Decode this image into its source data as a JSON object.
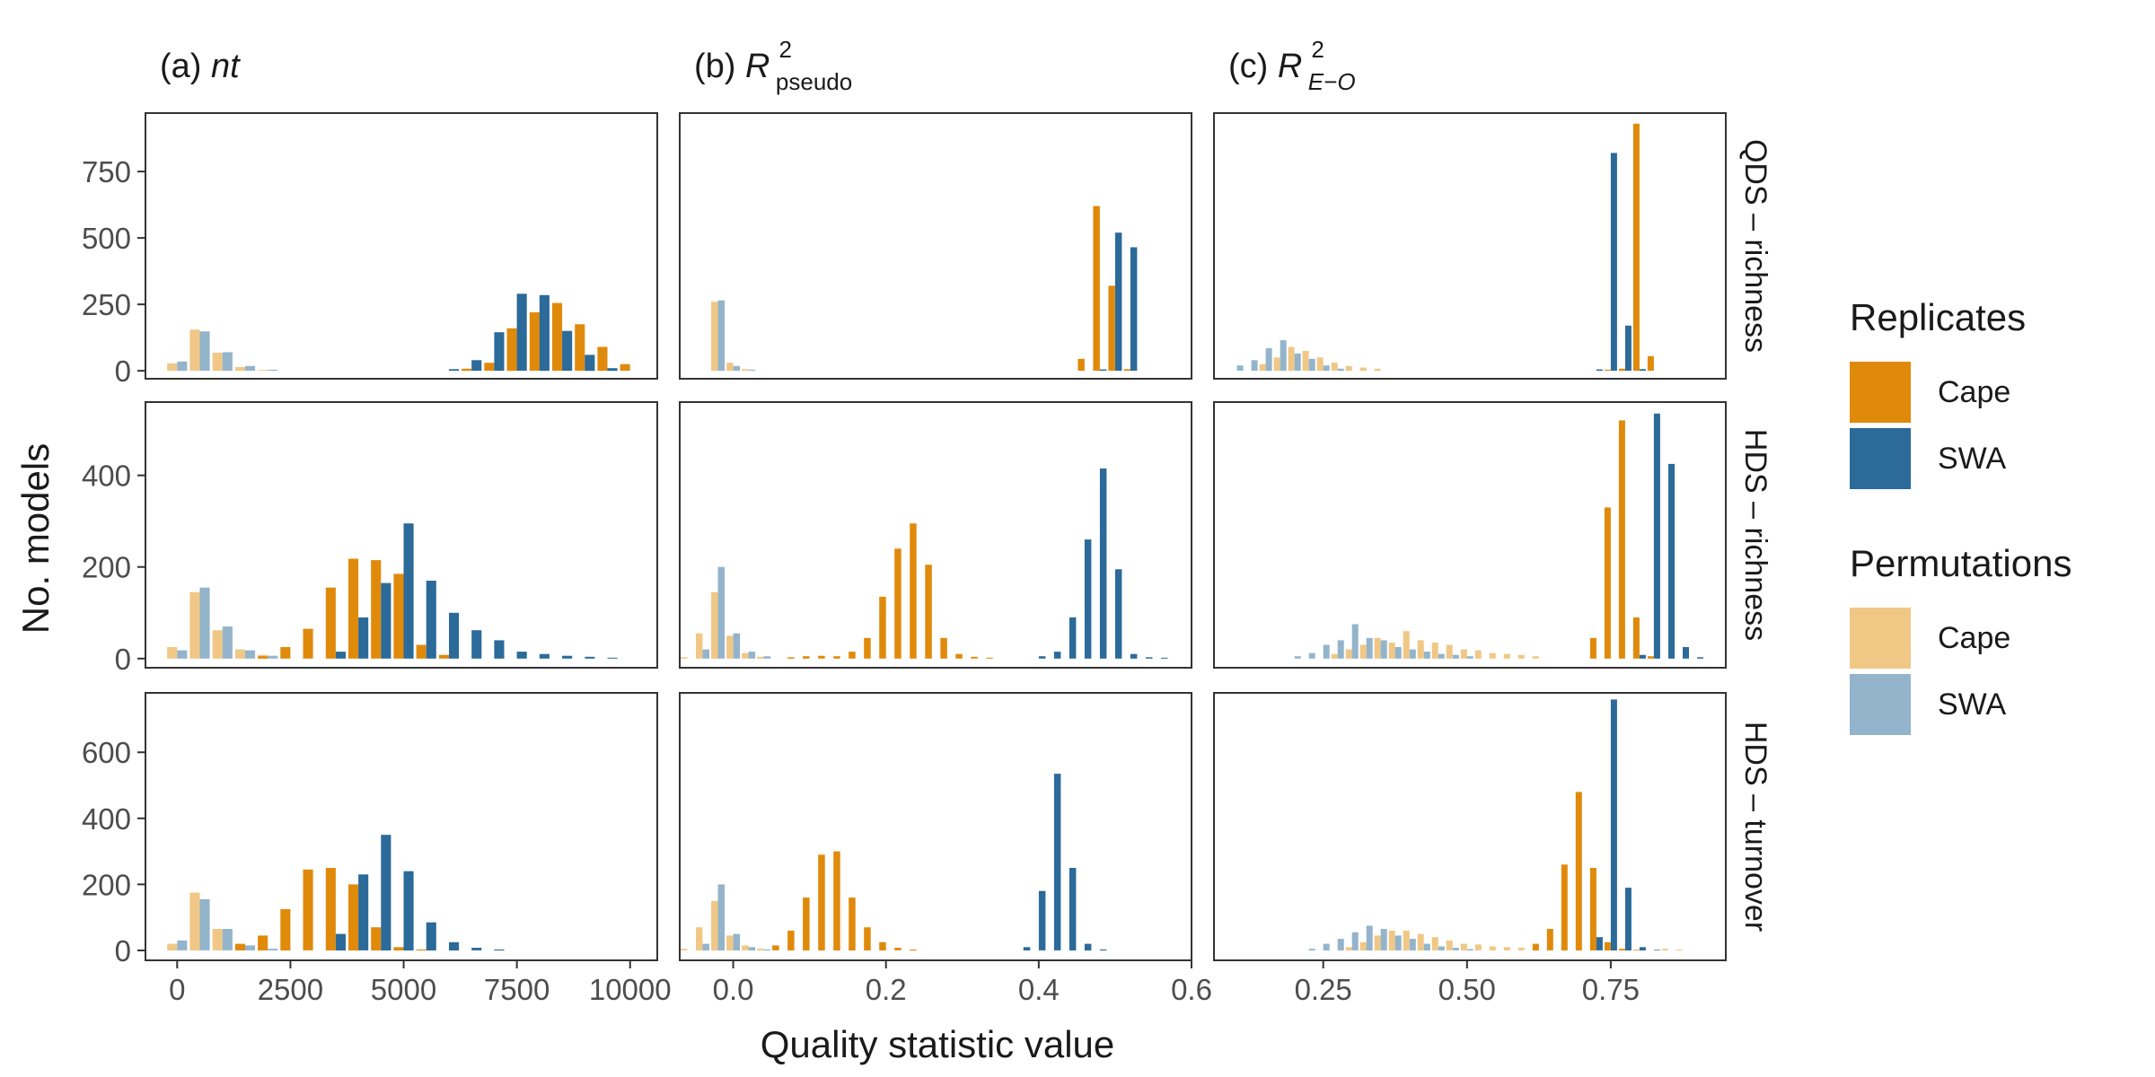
{
  "figure": {
    "ylabel": "No. models",
    "xlabel": "Quality statistic value"
  },
  "columns": [
    {
      "label": "(a)",
      "stat": "nt"
    },
    {
      "label": "(b)",
      "stat": "R",
      "sup": "2",
      "sub": "pseudo"
    },
    {
      "label": "(c)",
      "stat": "R",
      "sup": "2",
      "sub": "E−O"
    }
  ],
  "rows": [
    "QDS – richness",
    "HDS – richness",
    "HDS – turnover"
  ],
  "legend": {
    "replicates": {
      "title": "Replicates",
      "items": [
        {
          "label": "Cape",
          "color": "#E08A0B"
        },
        {
          "label": "SWA",
          "color": "#2B6A99"
        }
      ]
    },
    "permutations": {
      "title": "Permutations",
      "items": [
        {
          "label": "Cape",
          "color": "#F0C785"
        },
        {
          "label": "SWA",
          "color": "#93B4CB"
        }
      ]
    }
  },
  "colors": {
    "rep_cape": "#E08A0B",
    "rep_swa": "#2B6A99",
    "perm_cape": "#F0C785",
    "perm_swa": "#93B4CB"
  },
  "chart_data": {
    "type": "bar",
    "description_axes": {
      "columns": [
        {
          "xlim": [
            -700,
            10600
          ],
          "ticks": [
            0,
            2500,
            5000,
            7500,
            10000
          ],
          "tick_labels": [
            "0",
            "2500",
            "5000",
            "7500",
            "10000"
          ]
        },
        {
          "xlim": [
            -0.07,
            0.6
          ],
          "ticks": [
            0.0,
            0.2,
            0.4,
            0.6
          ],
          "tick_labels": [
            "0.0",
            "0.2",
            "0.4",
            "0.6"
          ]
        },
        {
          "xlim": [
            0.06,
            0.95
          ],
          "ticks": [
            0.25,
            0.5,
            0.75
          ],
          "tick_labels": [
            "0.25",
            "0.50",
            "0.75"
          ]
        }
      ],
      "rows": [
        {
          "ylim": [
            -30,
            970
          ],
          "ticks": [
            0,
            250,
            500,
            750
          ],
          "tick_labels": [
            "0",
            "250",
            "500",
            "750"
          ]
        },
        {
          "ylim": [
            -20,
            560
          ],
          "ticks": [
            0,
            200,
            400
          ],
          "tick_labels": [
            "0",
            "200",
            "400"
          ]
        },
        {
          "ylim": [
            -30,
            780
          ],
          "ticks": [
            0,
            200,
            400,
            600
          ],
          "tick_labels": [
            "0",
            "200",
            "400",
            "600"
          ]
        }
      ]
    },
    "panels": [
      {
        "row": 0,
        "col": 0,
        "bin_width": 500,
        "series": [
          {
            "name": "Cape",
            "group": "Permutations",
            "x": [
              0,
              500,
              1000,
              1500,
              2000
            ],
            "values": [
              28,
              155,
              68,
              14,
              3
            ]
          },
          {
            "name": "SWA",
            "group": "Permutations",
            "x": [
              0,
              500,
              1000,
              1500,
              2000
            ],
            "values": [
              35,
              148,
              70,
              18,
              4
            ]
          },
          {
            "name": "Cape",
            "group": "Replicates",
            "x": [
              6500,
              7000,
              7500,
              8000,
              8500,
              9000,
              9500,
              10000
            ],
            "values": [
              8,
              30,
              160,
              220,
              255,
              175,
              90,
              25
            ]
          },
          {
            "name": "SWA",
            "group": "Replicates",
            "x": [
              6000,
              6500,
              7000,
              7500,
              8000,
              8500,
              9000,
              9500
            ],
            "values": [
              6,
              40,
              145,
              290,
              285,
              150,
              60,
              10
            ]
          }
        ]
      },
      {
        "row": 0,
        "col": 1,
        "bin_width": 0.02,
        "series": [
          {
            "name": "Cape",
            "group": "Permutations",
            "x": [
              -0.02,
              0.0,
              0.02
            ],
            "values": [
              260,
              30,
              6
            ]
          },
          {
            "name": "SWA",
            "group": "Permutations",
            "x": [
              -0.02,
              0.0,
              0.02
            ],
            "values": [
              265,
              18,
              4
            ]
          },
          {
            "name": "Cape",
            "group": "Replicates",
            "x": [
              0.46,
              0.48,
              0.5,
              0.52
            ],
            "values": [
              45,
              620,
              320,
              6
            ]
          },
          {
            "name": "SWA",
            "group": "Replicates",
            "x": [
              0.48,
              0.5,
              0.52
            ],
            "values": [
              5,
              520,
              465
            ]
          }
        ]
      },
      {
        "row": 0,
        "col": 2,
        "bin_width": 0.025,
        "series": [
          {
            "name": "Cape",
            "group": "Permutations",
            "x": [
              0.15,
              0.175,
              0.2,
              0.225,
              0.25,
              0.275,
              0.3,
              0.325,
              0.35
            ],
            "values": [
              25,
              50,
              90,
              75,
              50,
              30,
              18,
              12,
              8
            ]
          },
          {
            "name": "SWA",
            "group": "Permutations",
            "x": [
              0.1,
              0.125,
              0.15,
              0.175,
              0.2,
              0.225,
              0.25,
              0.275
            ],
            "values": [
              20,
              40,
              85,
              115,
              65,
              45,
              20,
              8
            ]
          },
          {
            "name": "Cape",
            "group": "Replicates",
            "x": [
              0.75,
              0.775,
              0.8,
              0.825
            ],
            "values": [
              4,
              8,
              930,
              55
            ]
          },
          {
            "name": "SWA",
            "group": "Replicates",
            "x": [
              0.725,
              0.75,
              0.775,
              0.8
            ],
            "values": [
              5,
              820,
              170,
              6
            ]
          }
        ]
      },
      {
        "row": 1,
        "col": 0,
        "bin_width": 500,
        "series": [
          {
            "name": "Cape",
            "group": "Permutations",
            "x": [
              0,
              500,
              1000,
              1500,
              2000
            ],
            "values": [
              25,
              145,
              62,
              20,
              8
            ]
          },
          {
            "name": "SWA",
            "group": "Permutations",
            "x": [
              0,
              500,
              1000,
              1500,
              2000
            ],
            "values": [
              18,
              155,
              70,
              18,
              6
            ]
          },
          {
            "name": "Cape",
            "group": "Replicates",
            "x": [
              2000,
              2500,
              3000,
              3500,
              4000,
              4500,
              5000,
              5500,
              6000
            ],
            "values": [
              5,
              25,
              65,
              155,
              218,
              215,
              185,
              30,
              8
            ]
          },
          {
            "name": "SWA",
            "group": "Replicates",
            "x": [
              3500,
              4000,
              4500,
              5000,
              5500,
              6000,
              6500,
              7000,
              7500,
              8000,
              8500,
              9000,
              9500
            ],
            "values": [
              15,
              90,
              165,
              295,
              170,
              100,
              62,
              40,
              15,
              10,
              6,
              4,
              2
            ]
          }
        ]
      },
      {
        "row": 1,
        "col": 1,
        "bin_width": 0.02,
        "series": [
          {
            "name": "Cape",
            "group": "Permutations",
            "x": [
              -0.06,
              -0.04,
              -0.02,
              0.0,
              0.02,
              0.04
            ],
            "values": [
              3,
              55,
              145,
              50,
              12,
              4
            ]
          },
          {
            "name": "SWA",
            "group": "Permutations",
            "x": [
              -0.04,
              -0.02,
              0.0,
              0.02,
              0.04
            ],
            "values": [
              20,
              200,
              55,
              15,
              5
            ]
          },
          {
            "name": "Cape",
            "group": "Replicates",
            "x": [
              0.08,
              0.1,
              0.12,
              0.14,
              0.16,
              0.18,
              0.2,
              0.22,
              0.24,
              0.26,
              0.28,
              0.3,
              0.32,
              0.34
            ],
            "values": [
              3,
              5,
              6,
              5,
              15,
              45,
              135,
              240,
              295,
              205,
              45,
              10,
              4,
              2
            ]
          },
          {
            "name": "SWA",
            "group": "Replicates",
            "x": [
              0.4,
              0.42,
              0.44,
              0.46,
              0.48,
              0.5,
              0.52,
              0.54,
              0.56
            ],
            "values": [
              5,
              15,
              90,
              260,
              415,
              195,
              10,
              3,
              2
            ]
          }
        ]
      },
      {
        "row": 1,
        "col": 2,
        "bin_width": 0.025,
        "series": [
          {
            "name": "Cape",
            "group": "Permutations",
            "x": [
              0.275,
              0.3,
              0.325,
              0.35,
              0.375,
              0.4,
              0.425,
              0.45,
              0.475,
              0.5,
              0.525,
              0.55,
              0.575,
              0.6,
              0.625
            ],
            "values": [
              10,
              20,
              30,
              45,
              35,
              60,
              40,
              35,
              30,
              20,
              18,
              12,
              10,
              8,
              5
            ]
          },
          {
            "name": "SWA",
            "group": "Permutations",
            "x": [
              0.2,
              0.225,
              0.25,
              0.275,
              0.3,
              0.325,
              0.35,
              0.375,
              0.4,
              0.425,
              0.45,
              0.475,
              0.5
            ],
            "values": [
              5,
              12,
              30,
              40,
              75,
              45,
              40,
              25,
              20,
              15,
              10,
              8,
              5
            ]
          },
          {
            "name": "Cape",
            "group": "Replicates",
            "x": [
              0.725,
              0.75,
              0.775,
              0.8,
              0.825
            ],
            "values": [
              45,
              330,
              520,
              90,
              5
            ]
          },
          {
            "name": "SWA",
            "group": "Replicates",
            "x": [
              0.8,
              0.825,
              0.85,
              0.875,
              0.9
            ],
            "values": [
              8,
              535,
              425,
              25,
              3
            ]
          }
        ]
      },
      {
        "row": 2,
        "col": 0,
        "bin_width": 500,
        "series": [
          {
            "name": "Cape",
            "group": "Permutations",
            "x": [
              0,
              500,
              1000,
              1500,
              2000
            ],
            "values": [
              20,
              175,
              65,
              18,
              5
            ]
          },
          {
            "name": "SWA",
            "group": "Permutations",
            "x": [
              0,
              500,
              1000,
              1500,
              2000
            ],
            "values": [
              30,
              155,
              65,
              15,
              5
            ]
          },
          {
            "name": "Cape",
            "group": "Replicates",
            "x": [
              1500,
              2000,
              2500,
              3000,
              3500,
              4000,
              4500,
              5000,
              5500
            ],
            "values": [
              20,
              45,
              125,
              245,
              250,
              200,
              70,
              10,
              3
            ]
          },
          {
            "name": "SWA",
            "group": "Replicates",
            "x": [
              3500,
              4000,
              4500,
              5000,
              5500,
              6000,
              6500,
              7000
            ],
            "values": [
              50,
              230,
              350,
              240,
              85,
              25,
              8,
              3
            ]
          }
        ]
      },
      {
        "row": 2,
        "col": 1,
        "bin_width": 0.02,
        "series": [
          {
            "name": "Cape",
            "group": "Permutations",
            "x": [
              -0.06,
              -0.04,
              -0.02,
              0.0,
              0.02,
              0.04
            ],
            "values": [
              5,
              70,
              150,
              45,
              15,
              5
            ]
          },
          {
            "name": "SWA",
            "group": "Permutations",
            "x": [
              -0.04,
              -0.02,
              0.0,
              0.02,
              0.04
            ],
            "values": [
              20,
              200,
              50,
              10,
              3
            ]
          },
          {
            "name": "Cape",
            "group": "Replicates",
            "x": [
              0.06,
              0.08,
              0.1,
              0.12,
              0.14,
              0.16,
              0.18,
              0.2,
              0.22,
              0.24
            ],
            "values": [
              15,
              60,
              160,
              290,
              300,
              160,
              70,
              25,
              8,
              3
            ]
          },
          {
            "name": "SWA",
            "group": "Replicates",
            "x": [
              0.38,
              0.4,
              0.42,
              0.44,
              0.46,
              0.48
            ],
            "values": [
              10,
              180,
              535,
              250,
              20,
              3
            ]
          }
        ]
      },
      {
        "row": 2,
        "col": 2,
        "bin_width": 0.025,
        "series": [
          {
            "name": "Cape",
            "group": "Permutations",
            "x": [
              0.3,
              0.325,
              0.35,
              0.375,
              0.4,
              0.425,
              0.45,
              0.475,
              0.5,
              0.525,
              0.55,
              0.575,
              0.6,
              0.625,
              0.85,
              0.875
            ],
            "values": [
              10,
              25,
              45,
              60,
              60,
              50,
              40,
              30,
              20,
              18,
              12,
              10,
              8,
              5,
              5,
              3
            ]
          },
          {
            "name": "SWA",
            "group": "Permutations",
            "x": [
              0.225,
              0.25,
              0.275,
              0.3,
              0.325,
              0.35,
              0.375,
              0.4,
              0.425,
              0.45,
              0.475,
              0.5
            ],
            "values": [
              5,
              20,
              35,
              55,
              75,
              65,
              45,
              35,
              20,
              12,
              8,
              4
            ]
          },
          {
            "name": "Cape",
            "group": "Replicates",
            "x": [
              0.625,
              0.65,
              0.675,
              0.7,
              0.725,
              0.75,
              0.775,
              0.8
            ],
            "values": [
              20,
              65,
              260,
              480,
              250,
              25,
              5,
              2
            ]
          },
          {
            "name": "SWA",
            "group": "Replicates",
            "x": [
              0.725,
              0.75,
              0.775,
              0.8,
              0.825
            ],
            "values": [
              40,
              760,
              190,
              10,
              2
            ]
          }
        ]
      }
    ]
  }
}
